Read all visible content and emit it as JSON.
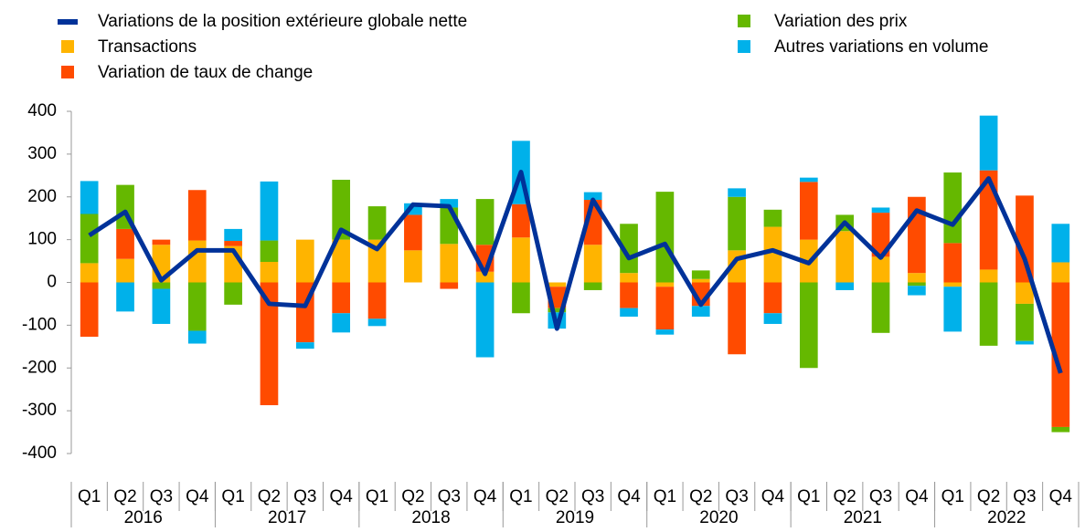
{
  "chart_data": {
    "type": "stacked-bar-line",
    "categories": [
      "Q1",
      "Q2",
      "Q3",
      "Q4",
      "Q1",
      "Q2",
      "Q3",
      "Q4",
      "Q1",
      "Q2",
      "Q3",
      "Q4",
      "Q1",
      "Q2",
      "Q3",
      "Q4",
      "Q1",
      "Q2",
      "Q3",
      "Q4",
      "Q1",
      "Q2",
      "Q3",
      "Q4",
      "Q1",
      "Q2",
      "Q3",
      "Q4"
    ],
    "years": [
      "2016",
      "2017",
      "2018",
      "2019",
      "2020",
      "2021",
      "2022"
    ],
    "ylim": [
      -400,
      400
    ],
    "yticks": [
      -400,
      -300,
      -200,
      -100,
      0,
      100,
      200,
      300,
      400
    ],
    "line": {
      "name": "Variations de la position extérieure globale nette",
      "color": "#003299",
      "values": [
        110,
        165,
        5,
        75,
        75,
        -50,
        -55,
        123,
        78,
        182,
        178,
        20,
        258,
        -108,
        193,
        57,
        90,
        -52,
        55,
        75,
        45,
        140,
        58,
        168,
        135,
        243,
        55,
        -212
      ]
    },
    "series": [
      {
        "name": "Transactions",
        "color": "#ffb400",
        "values": [
          45,
          55,
          88,
          98,
          85,
          48,
          100,
          100,
          100,
          75,
          90,
          25,
          105,
          -10,
          88,
          22,
          -10,
          8,
          75,
          130,
          100,
          120,
          60,
          22,
          -10,
          30,
          -50,
          47
        ]
      },
      {
        "name": "Variation de taux de change",
        "color": "#ff4b00",
        "values": [
          -127,
          70,
          12,
          118,
          12,
          -287,
          -140,
          -72,
          -85,
          83,
          -15,
          63,
          78,
          -50,
          105,
          -60,
          -100,
          -55,
          -168,
          -72,
          135,
          0,
          103,
          178,
          92,
          232,
          203,
          -338
        ]
      },
      {
        "name": "Variation des prix",
        "color": "#65b800",
        "values": [
          115,
          103,
          -15,
          -113,
          -52,
          50,
          0,
          140,
          78,
          0,
          85,
          107,
          -72,
          -10,
          -18,
          115,
          212,
          20,
          125,
          40,
          -200,
          38,
          -118,
          -8,
          165,
          -148,
          -87,
          -12
        ]
      },
      {
        "name": "Autres variations en volume",
        "color": "#00b1ea",
        "values": [
          77,
          -68,
          -82,
          -30,
          28,
          138,
          -15,
          -45,
          -17,
          27,
          20,
          -175,
          148,
          -38,
          18,
          -20,
          -12,
          -25,
          20,
          -25,
          10,
          -18,
          12,
          -22,
          -105,
          128,
          -8,
          90
        ]
      }
    ]
  }
}
